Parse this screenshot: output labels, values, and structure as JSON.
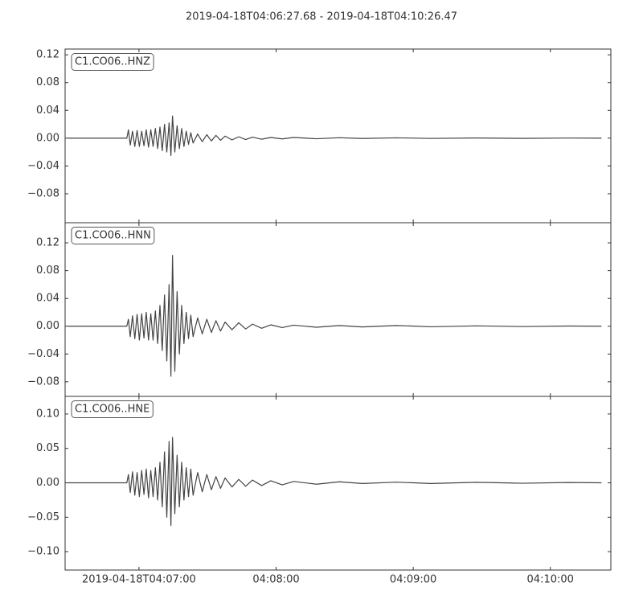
{
  "chart_data": [
    {
      "type": "line",
      "title": "2019-04-18T04:06:27.68  -  2019-04-18T04:10:26.47",
      "x": [
        1.4,
        15,
        27,
        27.7,
        28.5,
        29.5,
        30.5,
        31.5,
        32.5,
        33.5,
        34.5,
        35.5,
        36.5,
        37.5,
        38.5,
        39.5,
        40.5,
        41.5,
        42.5,
        43.5,
        44.5,
        45.5,
        46.3,
        47,
        48,
        49,
        50,
        51,
        52,
        53,
        54,
        55,
        56,
        58,
        60,
        62,
        64,
        66,
        68,
        70,
        73,
        76,
        79,
        82,
        86,
        90,
        95,
        100,
        110,
        120,
        130,
        145,
        160,
        180,
        200,
        220,
        234.7
      ],
      "series": [
        {
          "name": "C1.CO06..HNZ",
          "color": "#444444",
          "values": [
            0,
            0,
            0,
            0.012,
            -0.01,
            0.01,
            -0.012,
            0.011,
            -0.012,
            0.01,
            -0.011,
            0.012,
            -0.013,
            0.012,
            -0.012,
            0.014,
            -0.015,
            0.016,
            -0.018,
            0.02,
            -0.02,
            0.022,
            -0.025,
            0.032,
            -0.02,
            0.018,
            -0.015,
            0.014,
            -0.012,
            0.01,
            -0.009,
            0.008,
            -0.007,
            0.006,
            -0.005,
            0.005,
            -0.004,
            0.004,
            -0.003,
            0.003,
            -0.0025,
            0.002,
            -0.002,
            0.0015,
            -0.0015,
            0.001,
            -0.001,
            0.001,
            -0.0008,
            0.0006,
            -0.0005,
            0.0005,
            -0.0004,
            0.0003,
            -0.0003,
            0.0002,
            0
          ]
        }
      ],
      "xlim": [
        0,
        238.79
      ],
      "ylim": [
        -0.1217,
        0.1283
      ],
      "yticks": [
        {
          "value": -0.08,
          "label": "−0.08"
        },
        {
          "value": -0.04,
          "label": "−0.04"
        },
        {
          "value": 0,
          "label": "0.00"
        },
        0.04,
        0.08,
        0.12
      ]
    },
    {
      "type": "line",
      "x": [
        1.4,
        15,
        27,
        27.7,
        28.5,
        29.5,
        30.5,
        31.5,
        32.5,
        33.5,
        34.5,
        35.5,
        36.5,
        37.5,
        38.5,
        39.5,
        40.5,
        41.5,
        42.5,
        43.5,
        44.5,
        45.5,
        46.3,
        47,
        48,
        49,
        50,
        51,
        52,
        53,
        54,
        55,
        56,
        58,
        60,
        62,
        64,
        66,
        68,
        70,
        73,
        76,
        79,
        82,
        86,
        90,
        95,
        100,
        110,
        120,
        130,
        145,
        160,
        180,
        200,
        220,
        234.7
      ],
      "series": [
        {
          "name": "C1.CO06..HNN",
          "color": "#444444",
          "values": [
            0,
            0,
            0,
            0.01,
            -0.015,
            0.015,
            -0.018,
            0.017,
            -0.02,
            0.018,
            -0.017,
            0.02,
            -0.02,
            0.018,
            -0.02,
            0.022,
            -0.025,
            0.03,
            -0.035,
            0.045,
            -0.05,
            0.06,
            -0.072,
            0.102,
            -0.065,
            0.05,
            -0.04,
            0.03,
            -0.025,
            0.02,
            -0.018,
            0.016,
            -0.015,
            0.012,
            -0.011,
            0.01,
            -0.009,
            0.008,
            -0.007,
            0.006,
            -0.005,
            0.005,
            -0.004,
            0.003,
            -0.003,
            0.002,
            -0.002,
            0.0015,
            -0.0015,
            0.001,
            -0.001,
            0.001,
            -0.0008,
            0.0005,
            -0.0005,
            0.0003,
            0
          ]
        }
      ],
      "xlim": [
        0,
        238.79
      ],
      "ylim": [
        -0.101,
        0.149
      ],
      "yticks": [
        {
          "value": -0.08,
          "label": "−0.08"
        },
        {
          "value": -0.04,
          "label": "−0.04"
        },
        {
          "value": 0,
          "label": "0.00"
        },
        0.04,
        0.08,
        0.12
      ]
    },
    {
      "type": "line",
      "x": [
        1.4,
        15,
        27,
        27.7,
        28.5,
        29.5,
        30.5,
        31.5,
        32.5,
        33.5,
        34.5,
        35.5,
        36.5,
        37.5,
        38.5,
        39.5,
        40.5,
        41.5,
        42.5,
        43.5,
        44.5,
        45.5,
        46.3,
        47,
        48,
        49,
        50,
        51,
        52,
        53,
        54,
        55,
        56,
        58,
        60,
        62,
        64,
        66,
        68,
        70,
        73,
        76,
        79,
        82,
        86,
        90,
        95,
        100,
        110,
        120,
        130,
        145,
        160,
        180,
        200,
        220,
        234.7
      ],
      "series": [
        {
          "name": "C1.CO06..HNE",
          "color": "#444444",
          "values": [
            0,
            0,
            0,
            0.012,
            -0.014,
            0.016,
            -0.018,
            0.015,
            -0.02,
            0.018,
            -0.017,
            0.02,
            -0.022,
            0.018,
            -0.02,
            0.022,
            -0.025,
            0.03,
            -0.035,
            0.045,
            -0.05,
            0.06,
            -0.062,
            0.066,
            -0.045,
            0.04,
            -0.035,
            0.03,
            -0.025,
            0.022,
            -0.02,
            0.02,
            -0.018,
            0.015,
            -0.013,
            0.012,
            -0.01,
            0.009,
            -0.008,
            0.007,
            -0.006,
            0.005,
            -0.005,
            0.004,
            -0.004,
            0.003,
            -0.003,
            0.002,
            -0.002,
            0.0015,
            -0.001,
            0.001,
            -0.001,
            0.0008,
            -0.0006,
            0.0005,
            0
          ]
        }
      ],
      "xlim": [
        0,
        238.79
      ],
      "ylim": [
        -0.1267,
        0.1256
      ],
      "yticks": [
        {
          "value": -0.1,
          "label": "−0.10"
        },
        {
          "value": -0.05,
          "label": "−0.05"
        },
        {
          "value": 0,
          "label": "0.00"
        },
        {
          "value": 0.05,
          "label": "0.05"
        },
        {
          "value": 0.1,
          "label": "0.10"
        }
      ],
      "xticks": [
        {
          "value": 32.32,
          "label": "2019-04-18T04:07:00"
        },
        {
          "value": 92.32,
          "label": "04:08:00"
        },
        {
          "value": 152.32,
          "label": "04:09:00"
        },
        {
          "value": 212.32,
          "label": "04:10:00"
        }
      ]
    }
  ]
}
